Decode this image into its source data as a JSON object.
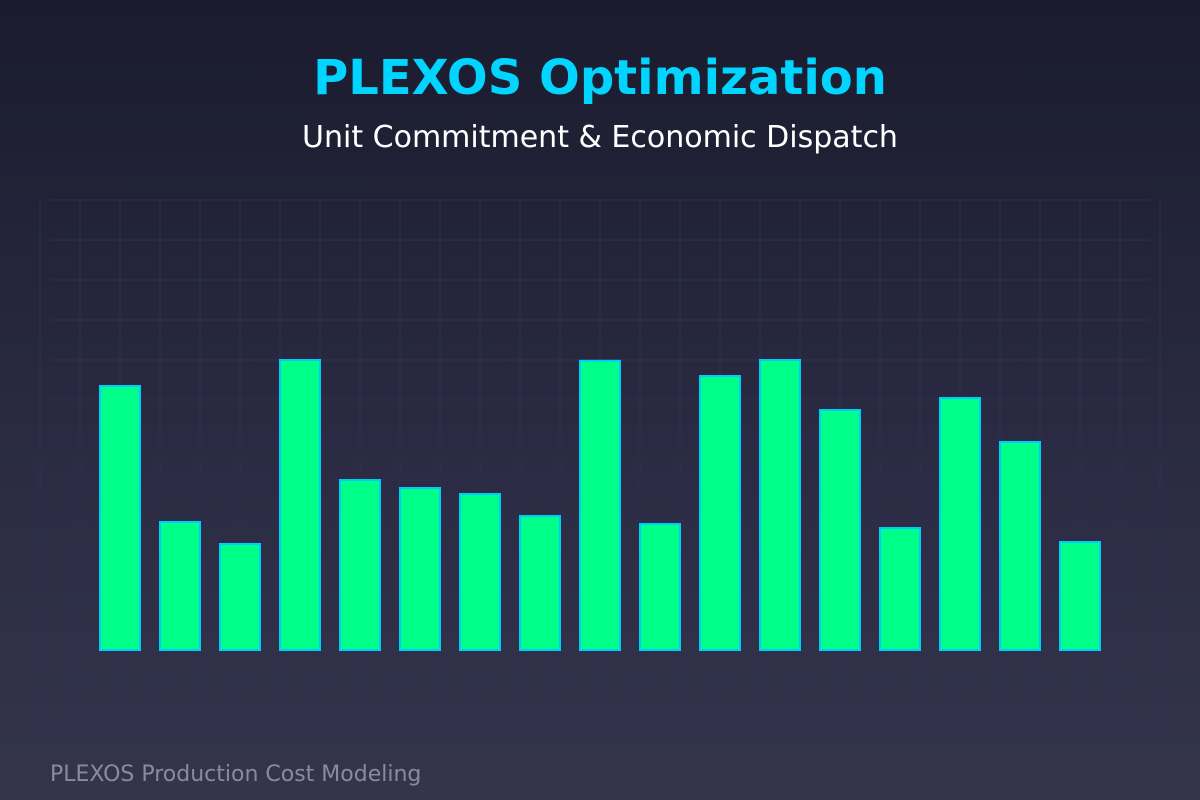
{
  "header": {
    "title": "PLEXOS Optimization",
    "subtitle": "Unit Commitment & Economic Dispatch"
  },
  "footer": {
    "caption": "PLEXOS Production Cost Modeling"
  },
  "colors": {
    "title": "#00d4ff",
    "bar_fill": "#00ff88",
    "bar_stroke": "#00ccff",
    "grid": "#2e2f55",
    "caption": "#8a8b9a"
  },
  "chart_data": {
    "type": "bar",
    "title": "",
    "xlabel": "",
    "ylabel": "",
    "grid": true,
    "legend": "none",
    "ylim": [
      0,
      100
    ],
    "values": [
      66,
      32,
      26.5,
      72.5,
      42.5,
      40.5,
      39,
      33.5,
      72.3,
      31.5,
      68.5,
      72.5,
      60,
      30.5,
      63,
      52,
      27
    ]
  }
}
